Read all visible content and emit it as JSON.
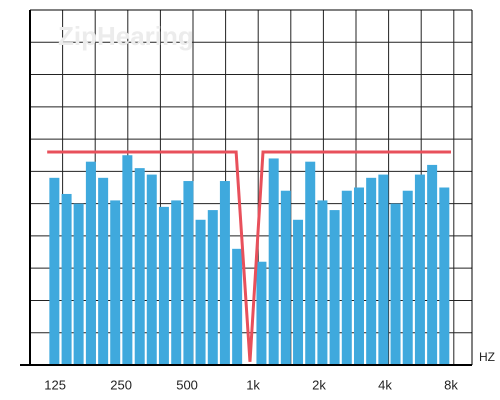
{
  "chart_data": {
    "type": "bar",
    "watermark": "ZipHearing",
    "xlabel": "HZ",
    "xscale": "log",
    "xlim": [
      96,
      9975
    ],
    "xticks": [
      125,
      250,
      500,
      {
        "value": 1000,
        "label": "1k"
      },
      {
        "value": 2000,
        "label": "2k"
      },
      {
        "value": 4000,
        "label": "4k"
      },
      {
        "value": 8000,
        "label": "8k"
      }
    ],
    "ylim": [
      0,
      11
    ],
    "yticks": [
      0,
      1,
      2,
      3,
      4,
      5,
      6,
      7,
      8,
      9,
      10,
      11
    ],
    "grid": true,
    "x": [
      124,
      141,
      160,
      182,
      207,
      235,
      267,
      304,
      345,
      392,
      446,
      507,
      576,
      655,
      744,
      846,
      1092,
      1242,
      1411,
      1604,
      1823,
      2072,
      2355,
      2677,
      3043,
      3458,
      3931,
      4468,
      5078,
      5772,
      6561,
      7457
    ],
    "values": [
      5.8,
      5.3,
      5.0,
      6.3,
      5.8,
      5.1,
      6.5,
      6.1,
      5.9,
      4.9,
      5.1,
      5.7,
      4.5,
      4.8,
      5.7,
      3.6,
      3.2,
      6.4,
      5.4,
      4.5,
      6.3,
      5.1,
      4.8,
      5.4,
      5.5,
      5.8,
      5.9,
      5.0,
      5.4,
      5.9,
      6.2,
      5.5
    ],
    "color": "#3fa9dd",
    "line": {
      "x": [
        115,
        837,
        968,
        1110,
        8000
      ],
      "values": [
        6.6,
        6.6,
        0.1,
        6.6,
        6.6
      ],
      "color": "#e8505b"
    }
  }
}
